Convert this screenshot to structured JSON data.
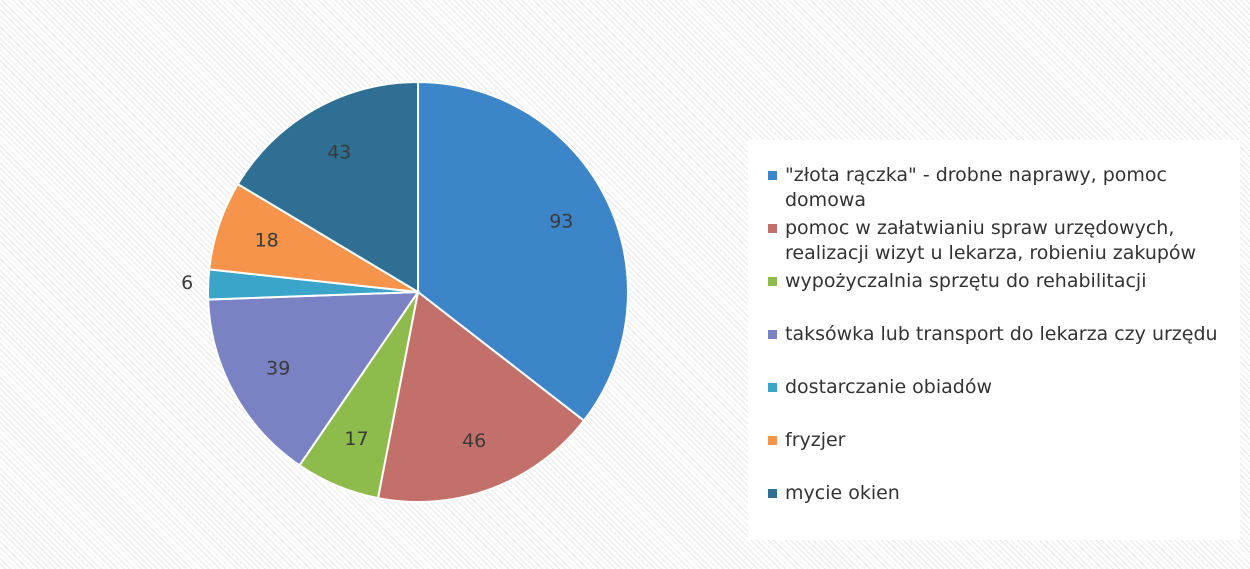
{
  "chart_data": {
    "type": "pie",
    "categories": [
      "\"złota rączka\" - drobne naprawy, pomoc domowa",
      "pomoc w załatwianiu spraw urzędowych, realizacji wizyt u lekarza, robieniu zakupów",
      "wypożyczalnia sprzętu do rehabilitacji",
      "taksówka lub transport do lekarza czy urzędu",
      "dostarczanie obiadów",
      "fryzjer",
      "mycie okien"
    ],
    "values": [
      93,
      46,
      17,
      39,
      6,
      18,
      43
    ],
    "colors": [
      "#3d85c9",
      "#c4706a",
      "#8dbb4c",
      "#7a82c4",
      "#3aa5c8",
      "#f5944a",
      "#2f6f93"
    ]
  }
}
